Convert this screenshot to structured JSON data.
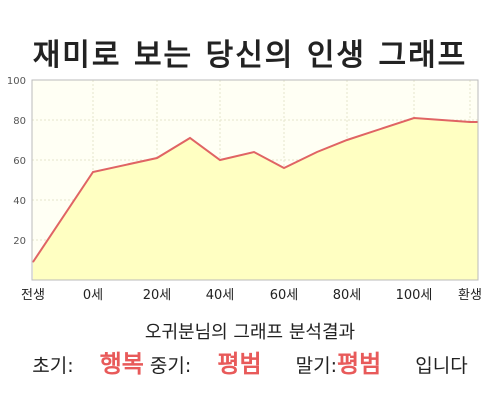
{
  "title": "재미로 보는 당신의 인생 그래프",
  "chart_data": {
    "type": "area",
    "x_labels": [
      "전생",
      "0세",
      "20세",
      "40세",
      "60세",
      "80세",
      "100세",
      "환생"
    ],
    "y_ticks": [
      20,
      40,
      60,
      80,
      100
    ],
    "ylim": [
      0,
      100
    ],
    "points": [
      {
        "x": "전생",
        "y": 9
      },
      {
        "x": "0세",
        "y": 54
      },
      {
        "x": "20세",
        "y": 61
      },
      {
        "x": "30세",
        "y": 71
      },
      {
        "x": "40세",
        "y": 60
      },
      {
        "x": "50세",
        "y": 64
      },
      {
        "x": "60세",
        "y": 56
      },
      {
        "x": "70세",
        "y": 64
      },
      {
        "x": "80세",
        "y": 70
      },
      {
        "x": "100세",
        "y": 81
      },
      {
        "x": "환생",
        "y": 79
      }
    ],
    "grid": true,
    "colors": {
      "line": "#e06464",
      "fill": "#ffffc2",
      "grid": "#e6e6cc"
    }
  },
  "result": {
    "subtitle": "오귀분님의 그래프 분석결과",
    "early_label": "초기:",
    "early_value": "행복",
    "middle_label": "중기:",
    "middle_value": "평범",
    "late_label": "말기:",
    "late_value": "평범",
    "ending": "입니다"
  }
}
